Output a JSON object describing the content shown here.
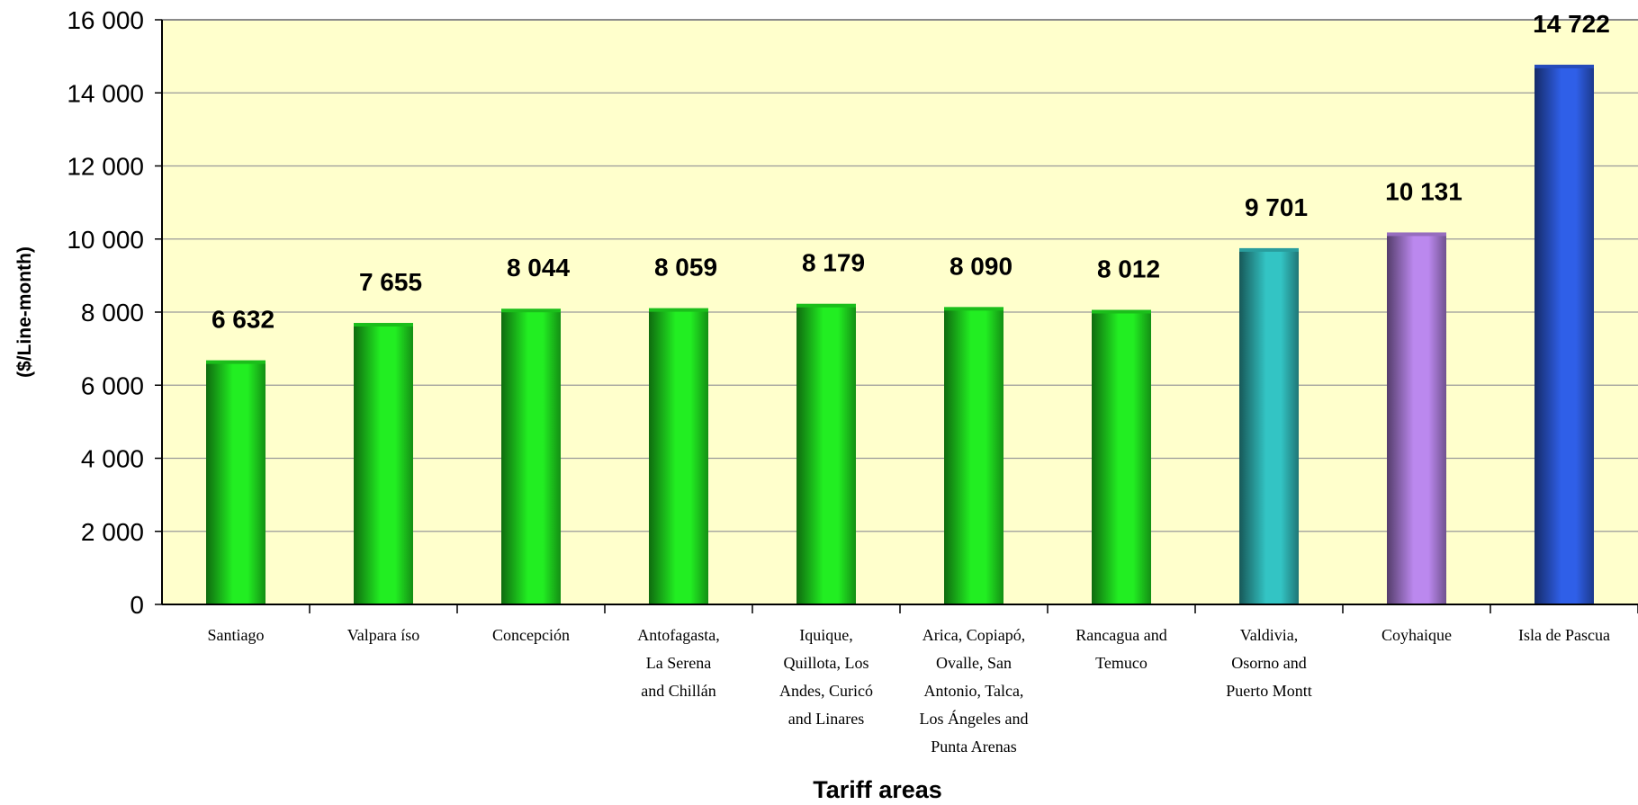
{
  "chart_data": {
    "type": "bar",
    "title": "",
    "xlabel": "Tariff areas",
    "ylabel": "($/Line-month)",
    "ylim": [
      0,
      16000
    ],
    "yticks": [
      0,
      2000,
      4000,
      6000,
      8000,
      10000,
      12000,
      14000,
      16000
    ],
    "ytick_labels": [
      "0",
      "2 000",
      "4 000",
      "6 000",
      "8 000",
      "10 000",
      "12 000",
      "14 000",
      "16 000"
    ],
    "grid": true,
    "background_color": "#ffffcc",
    "categories": [
      [
        "Santiago"
      ],
      [
        "Valpara íso"
      ],
      [
        "Concepción"
      ],
      [
        "Antofagasta,",
        "La Serena",
        "and Chillán"
      ],
      [
        "Iquique,",
        "Quillota, Los",
        "Andes, Curicó",
        "and Linares"
      ],
      [
        "Arica, Copiapó,",
        "Ovalle, San",
        "Antonio, Talca,",
        "Los Ángeles and",
        "Punta Arenas"
      ],
      [
        "Rancagua and",
        "Temuco"
      ],
      [
        "Valdivia,",
        "Osorno and",
        "Puerto Montt"
      ],
      [
        "Coyhaique"
      ],
      [
        "Isla de Pascua"
      ]
    ],
    "values": [
      6632,
      7655,
      8044,
      8059,
      8179,
      8090,
      8012,
      9701,
      10131,
      14722
    ],
    "value_labels": [
      "6 632",
      "7 655",
      "8 044",
      "8 059",
      "8 179",
      "8 090",
      "8 012",
      "9 701",
      "10 131",
      "14 722"
    ],
    "bar_colors": [
      "#22ee22",
      "#22ee22",
      "#22ee22",
      "#22ee22",
      "#22ee22",
      "#22ee22",
      "#22ee22",
      "#33c4c4",
      "#bb88ee",
      "#2f5fe8"
    ]
  }
}
